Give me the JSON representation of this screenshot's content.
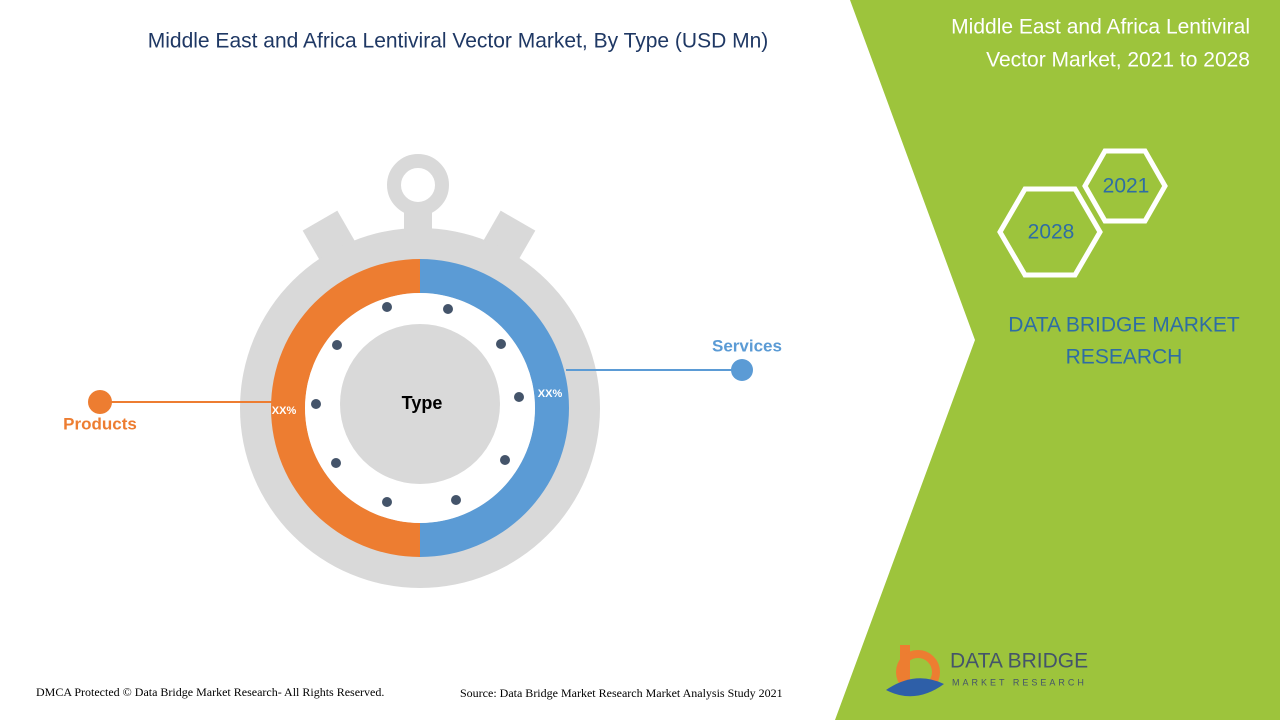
{
  "header": {
    "title": "Middle East and Africa Lentiviral Vector Market, By Type (USD Mn)"
  },
  "side_panel": {
    "title_lines": [
      "Middle East and Africa Lentiviral",
      "Vector Market, 2021 to 2028"
    ],
    "years": [
      "2021",
      "2028"
    ],
    "brand_lines": [
      "DATA BRIDGE MARKET",
      "RESEARCH"
    ]
  },
  "diagram": {
    "center_label": "Type",
    "segments": [
      {
        "label": "Products",
        "value_label": "XX%"
      },
      {
        "label": "Services",
        "value_label": "XX%"
      }
    ]
  },
  "footer": {
    "copyright": "DMCA Protected © Data Bridge Market Research- All Rights Reserved.",
    "source": "Source: Data Bridge Market Research Market Analysis Study 2021"
  },
  "logo": {
    "name": "DATA BRIDGE",
    "tagline": "MARKET RESEARCH"
  }
}
